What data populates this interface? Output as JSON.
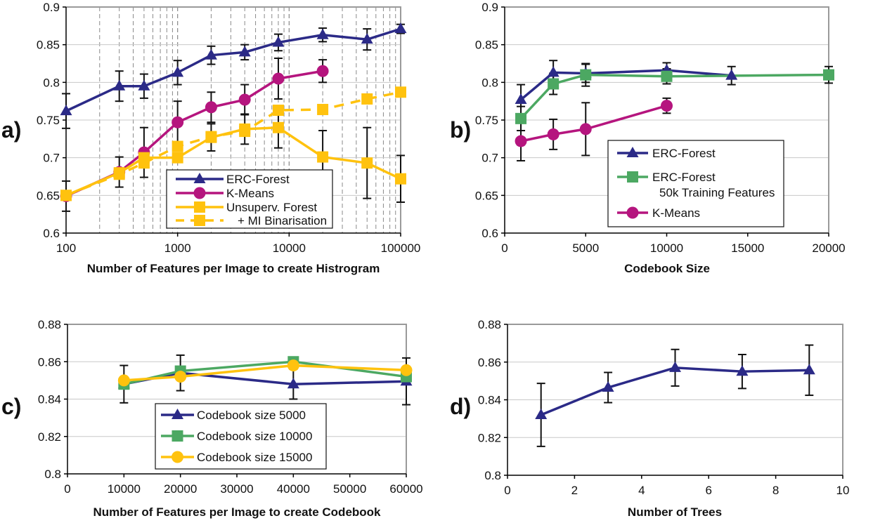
{
  "colors": {
    "navy": "#2B2A87",
    "magenta": "#B5157E",
    "yellow": "#FFC20E",
    "green": "#4CA862"
  },
  "chart_data": [
    {
      "panel_label": "a)",
      "type": "line",
      "xlabel": "Number of Features per Image to create Histrogram",
      "ylabel": "",
      "xscale": "log",
      "xlim": [
        100,
        100000
      ],
      "ylim": [
        0.6,
        0.9
      ],
      "xticks": [
        "100",
        "1000",
        "10000",
        "100000"
      ],
      "yticks": [
        "0.9",
        "0.85",
        "0.8",
        "0.75",
        "0.7",
        "0.65",
        "0.6"
      ],
      "grid": "horizontal major + vertical dashed log minor",
      "legend": "bottom-center",
      "series": [
        {
          "name": "ERC-Forest",
          "color": "#2B2A87",
          "marker": "triangle",
          "dashed": false,
          "x": [
            100,
            300,
            500,
            1000,
            2000,
            4000,
            8000,
            20000,
            50000,
            100000
          ],
          "y": [
            0.762,
            0.795,
            0.795,
            0.813,
            0.836,
            0.84,
            0.853,
            0.863,
            0.857,
            0.871
          ],
          "err": [
            0.023,
            0.02,
            0.016,
            0.016,
            0.012,
            0.01,
            0.011,
            0.009,
            0.014,
            0.006
          ]
        },
        {
          "name": "K-Means",
          "color": "#B5157E",
          "marker": "circle",
          "dashed": false,
          "x": [
            100,
            300,
            500,
            1000,
            2000,
            4000,
            8000,
            20000
          ],
          "y": [
            0.649,
            0.681,
            0.707,
            0.747,
            0.767,
            0.777,
            0.805,
            0.815
          ],
          "err": [
            0.02,
            0.02,
            0.033,
            0.028,
            0.02,
            0.02,
            0.027,
            0.015
          ]
        },
        {
          "name": "Unsuperv. Forest",
          "color": "#FFC20E",
          "marker": "square",
          "dashed": false,
          "x": [
            100,
            300,
            500,
            1000,
            2000,
            4000,
            8000,
            20000,
            50000,
            100000
          ],
          "y": [
            0.65,
            0.68,
            0.7,
            0.7,
            0.727,
            0.738,
            0.74,
            0.701,
            0.693,
            0.672
          ],
          "err": [
            0,
            0,
            0,
            0,
            0.018,
            0.02,
            0.027,
            0.035,
            0.047,
            0.031
          ]
        },
        {
          "name": "+ MI Binarisation",
          "color": "#FFC20E",
          "marker": "square",
          "dashed": true,
          "x": [
            100,
            300,
            500,
            1000,
            2000,
            4000,
            8000,
            20000,
            50000,
            100000
          ],
          "y": [
            0.65,
            0.678,
            0.693,
            0.715,
            0.728,
            0.735,
            0.763,
            0.764,
            0.778,
            0.787
          ],
          "err": []
        }
      ]
    },
    {
      "panel_label": "b)",
      "type": "line",
      "xlabel": "Codebook Size",
      "ylabel": "",
      "xscale": "linear",
      "xlim": [
        0,
        20000
      ],
      "ylim": [
        0.6,
        0.9
      ],
      "xticks": [
        "0",
        "5000",
        "10000",
        "15000",
        "20000"
      ],
      "yticks": [
        "0.9",
        "0.85",
        "0.8",
        "0.75",
        "0.7",
        "0.65",
        "0.6"
      ],
      "grid": "horizontal",
      "legend": "bottom-center",
      "series": [
        {
          "name": "ERC-Forest",
          "color": "#2B2A87",
          "marker": "triangle",
          "dashed": false,
          "x": [
            1000,
            3000,
            5000,
            10000,
            14000
          ],
          "y": [
            0.777,
            0.813,
            0.812,
            0.816,
            0.809
          ],
          "err": [
            0.02,
            0.016,
            0.012,
            0.01,
            0.012
          ]
        },
        {
          "name": "ERC-Forest",
          "name_line2": "50k Training Features",
          "color": "#4CA862",
          "marker": "square",
          "dashed": false,
          "x": [
            1000,
            3000,
            5000,
            10000,
            20000
          ],
          "y": [
            0.752,
            0.798,
            0.81,
            0.808,
            0.81
          ],
          "err": [
            0.016,
            0.014,
            0.015,
            0.01,
            0.011
          ]
        },
        {
          "name": "K-Means",
          "color": "#B5157E",
          "marker": "circle",
          "dashed": false,
          "x": [
            1000,
            3000,
            5000,
            10000
          ],
          "y": [
            0.722,
            0.731,
            0.738,
            0.769
          ],
          "err": [
            0.026,
            0.02,
            0.035,
            0.01
          ]
        }
      ]
    },
    {
      "panel_label": "c)",
      "type": "line",
      "xlabel": "Number of Features per Image to create Codebook",
      "ylabel": "",
      "xscale": "linear",
      "xlim": [
        0,
        60000
      ],
      "ylim": [
        0.8,
        0.88
      ],
      "xticks": [
        "0",
        "10000",
        "20000",
        "30000",
        "40000",
        "50000",
        "60000"
      ],
      "yticks": [
        "0.88",
        "0.86",
        "0.84",
        "0.82",
        "0.8"
      ],
      "grid": "horizontal",
      "legend": "bottom-center",
      "series": [
        {
          "name": "Codebook size 5000",
          "color": "#2B2A87",
          "marker": "triangle",
          "dashed": false,
          "x": [
            10000,
            20000,
            40000,
            60000
          ],
          "y": [
            0.848,
            0.854,
            0.848,
            0.8495
          ],
          "err": [
            0.01,
            0.0095,
            0.008,
            0.0125
          ]
        },
        {
          "name": "Codebook size 10000",
          "color": "#4CA862",
          "marker": "square",
          "dashed": false,
          "x": [
            10000,
            20000,
            40000,
            60000
          ],
          "y": [
            0.848,
            0.855,
            0.86,
            0.852
          ],
          "err": []
        },
        {
          "name": "Codebook size 15000",
          "color": "#FFC20E",
          "marker": "circle",
          "dashed": false,
          "x": [
            10000,
            20000,
            40000,
            60000
          ],
          "y": [
            0.85,
            0.852,
            0.858,
            0.8555
          ],
          "err": []
        }
      ]
    },
    {
      "panel_label": "d)",
      "type": "line",
      "xlabel": "Number of Trees",
      "ylabel": "",
      "xscale": "linear",
      "xlim": [
        0,
        10
      ],
      "ylim": [
        0.8,
        0.88
      ],
      "xticks": [
        "0",
        "2",
        "4",
        "6",
        "8",
        "10"
      ],
      "yticks": [
        "0.88",
        "0.86",
        "0.84",
        "0.82",
        "0.8"
      ],
      "grid": "horizontal",
      "legend": "none",
      "series": [
        {
          "color": "#2B2A87",
          "marker": "triangle",
          "dashed": false,
          "x": [
            1,
            3,
            5,
            7,
            9
          ],
          "y": [
            0.832,
            0.8465,
            0.857,
            0.855,
            0.8557
          ],
          "err": [
            0.0167,
            0.008,
            0.0097,
            0.009,
            0.0133
          ]
        }
      ]
    }
  ]
}
